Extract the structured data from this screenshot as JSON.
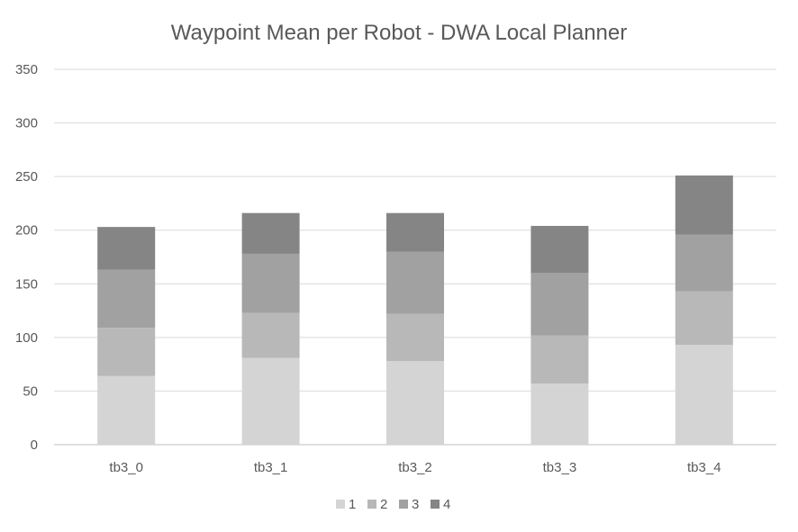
{
  "chart_data": {
    "type": "bar",
    "stacked": true,
    "title": "Waypoint Mean per Robot - DWA Local Planner",
    "xlabel": "",
    "ylabel": "",
    "categories": [
      "tb3_0",
      "tb3_1",
      "tb3_2",
      "tb3_3",
      "tb3_4"
    ],
    "ylim": [
      0,
      350
    ],
    "yticks": [
      0,
      50,
      100,
      150,
      200,
      250,
      300,
      350
    ],
    "grid": true,
    "legend_position": "bottom",
    "series": [
      {
        "name": "1",
        "color": "#d4d4d4",
        "values": [
          64,
          81,
          78,
          57,
          93
        ]
      },
      {
        "name": "2",
        "color": "#b8b8b8",
        "values": [
          45,
          42,
          44,
          45,
          50
        ]
      },
      {
        "name": "3",
        "color": "#a1a1a1",
        "values": [
          54,
          55,
          58,
          58,
          53
        ]
      },
      {
        "name": "4",
        "color": "#858585",
        "values": [
          40,
          38,
          36,
          44,
          55
        ]
      }
    ]
  }
}
